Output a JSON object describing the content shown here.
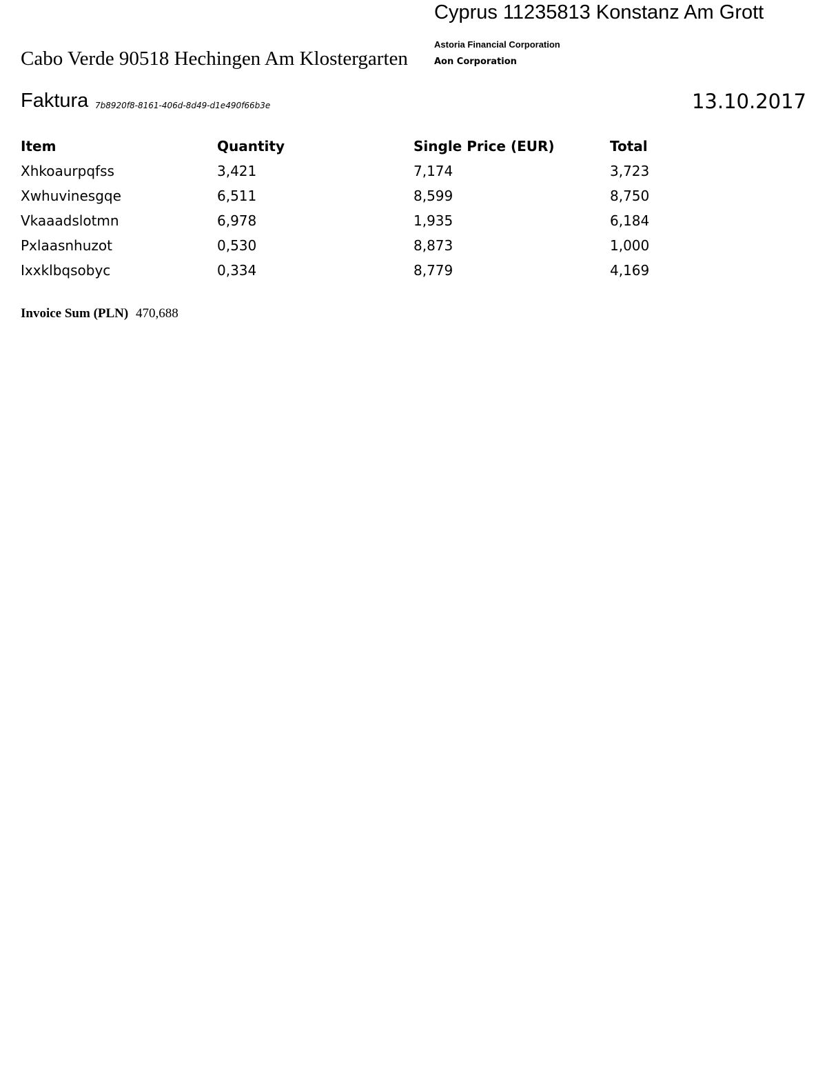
{
  "recipient": {
    "address": "Cyprus 11235813 Konstanz Am Grott",
    "companies": [
      "Astoria Financial Corporation",
      "Aon Corporation"
    ]
  },
  "sender": {
    "address": "Cabo Verde 90518 Hechingen Am Klostergarten"
  },
  "invoice": {
    "title": "Faktura",
    "id": "7b8920f8-8161-406d-8d49-d1e490f66b3e",
    "date": "13.10.2017"
  },
  "table": {
    "headers": [
      "Item",
      "Quantity",
      "Single Price (EUR)",
      "Total"
    ],
    "rows": [
      [
        "Xhkoaurpqfss",
        "3,421",
        "7,174",
        "3,723"
      ],
      [
        "Xwhuvinesgqe",
        "6,511",
        "8,599",
        "8,750"
      ],
      [
        "Vkaaadslotmn",
        "6,978",
        "1,935",
        "6,184"
      ],
      [
        "Pxlaasnhuzot",
        "0,530",
        "8,873",
        "1,000"
      ],
      [
        "Ixxklbqsobyc",
        "0,334",
        "8,779",
        "4,169"
      ]
    ]
  },
  "summary": {
    "label": "Invoice Sum (PLN)",
    "value": "470,688"
  }
}
